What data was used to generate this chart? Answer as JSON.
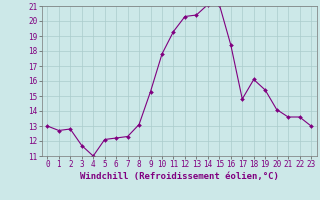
{
  "x": [
    0,
    1,
    2,
    3,
    4,
    5,
    6,
    7,
    8,
    9,
    10,
    11,
    12,
    13,
    14,
    15,
    16,
    17,
    18,
    19,
    20,
    21,
    22,
    23
  ],
  "y": [
    13.0,
    12.7,
    12.8,
    11.7,
    11.0,
    12.1,
    12.2,
    12.3,
    13.1,
    15.3,
    17.8,
    19.3,
    20.3,
    20.4,
    21.1,
    21.1,
    18.4,
    14.8,
    16.1,
    15.4,
    14.1,
    13.6,
    13.6,
    13.0
  ],
  "xlim": [
    -0.5,
    23.5
  ],
  "ylim": [
    11,
    21
  ],
  "yticks": [
    11,
    12,
    13,
    14,
    15,
    16,
    17,
    18,
    19,
    20,
    21
  ],
  "xticks": [
    0,
    1,
    2,
    3,
    4,
    5,
    6,
    7,
    8,
    9,
    10,
    11,
    12,
    13,
    14,
    15,
    16,
    17,
    18,
    19,
    20,
    21,
    22,
    23
  ],
  "xlabel": "Windchill (Refroidissement éolien,°C)",
  "line_color": "#800080",
  "marker": "D",
  "marker_size": 2.0,
  "bg_color": "#cce8e8",
  "grid_color": "#aacccc",
  "tick_fontsize": 5.5,
  "xlabel_fontsize": 6.5
}
